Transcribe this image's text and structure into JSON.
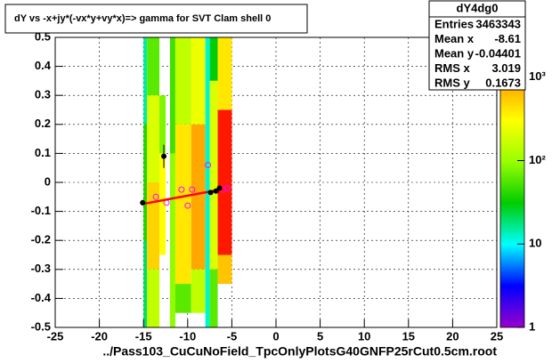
{
  "chart_data": {
    "type": "heatmap",
    "title": "dY vs -x+jy*(-vx*y+vy*x)=> gamma for SVT Clam shell 0",
    "xlabel": "../Pass103_CuCuNoField_TpcOnlyPlotsG40GNFP25rCut0.5cm.root",
    "xlim": [
      -25,
      25
    ],
    "xticks": [
      -25,
      -20,
      -15,
      -10,
      -5,
      0,
      5,
      10,
      15,
      20,
      25
    ],
    "ylim": [
      -0.5,
      0.5
    ],
    "yticks": [
      -0.5,
      -0.4,
      -0.3,
      -0.2,
      -0.1,
      0,
      0.1,
      0.2,
      0.3,
      0.4,
      0.5
    ],
    "zlim": [
      1,
      3000
    ],
    "zlog": true,
    "zticks": [
      1,
      10,
      {
        "value": 100,
        "label": "10²"
      },
      {
        "value": 1000,
        "label": "10³"
      }
    ],
    "grid": true,
    "palette": [
      "#9900cc",
      "#0000ff",
      "#00ffff",
      "#00cc00",
      "#99ff00",
      "#ffff00",
      "#ff9900",
      "#ff0000"
    ],
    "cells": [
      [
        -15,
        -14.6,
        0.2,
        0.5,
        15
      ],
      [
        -15,
        -14.6,
        -0.2,
        0.2,
        40
      ],
      [
        -15,
        -14.6,
        -0.5,
        -0.2,
        20
      ],
      [
        -14.6,
        -13.2,
        0.3,
        0.5,
        60
      ],
      [
        -14.6,
        -13.2,
        0,
        0.3,
        200
      ],
      [
        -14.6,
        -13.2,
        -0.3,
        0,
        500
      ],
      [
        -14.6,
        -13.2,
        -0.5,
        -0.3,
        150
      ],
      [
        -13.2,
        -12.5,
        0.1,
        0.3,
        80
      ],
      [
        -13.2,
        -12.5,
        -0.25,
        0.1,
        300
      ],
      [
        -12,
        -11.4,
        0.1,
        0.5,
        50
      ],
      [
        -12,
        -11.4,
        -0.5,
        0.1,
        90
      ],
      [
        -11.4,
        -9.6,
        0.2,
        0.5,
        150
      ],
      [
        -11.4,
        -9.6,
        -0.35,
        0.2,
        400
      ],
      [
        -11.4,
        -9.6,
        -0.45,
        -0.35,
        60
      ],
      [
        -9.6,
        -8,
        0.2,
        0.5,
        250
      ],
      [
        -9.6,
        -8,
        -0.3,
        0.2,
        800
      ],
      [
        -9.6,
        -8,
        -0.45,
        -0.3,
        150
      ],
      [
        -8,
        -7.5,
        -0.5,
        0.5,
        12
      ],
      [
        -7.5,
        -6.6,
        0.35,
        0.5,
        30
      ],
      [
        -7.5,
        -6.6,
        -0.3,
        0.35,
        200
      ],
      [
        -7.5,
        -6.6,
        -0.5,
        -0.3,
        60
      ],
      [
        -6.6,
        -5,
        0.25,
        0.5,
        400
      ],
      [
        -6.6,
        -5,
        -0.25,
        0.25,
        2500
      ],
      [
        -6.6,
        -5,
        -0.35,
        -0.25,
        600
      ]
    ],
    "profile": {
      "x": [
        -15.1,
        -12.7,
        -7.4,
        -6.8,
        -6.4
      ],
      "y": [
        -0.07,
        0.09,
        -0.035,
        -0.03,
        -0.02
      ],
      "yerr": [
        0.01,
        0.04,
        0.008,
        0.008,
        0.008
      ]
    },
    "circles": {
      "x": [
        -13.6,
        -12.4,
        -10.7,
        -10,
        -9.5,
        -7.7,
        -6,
        -5.5
      ],
      "y": [
        -0.05,
        -0.07,
        -0.025,
        -0.08,
        -0.025,
        0.06,
        -0.025,
        -0.02
      ]
    },
    "fit": {
      "x": [
        -15.2,
        -6.3
      ],
      "y": [
        -0.075,
        -0.025
      ]
    },
    "stats": {
      "title": "dY4dg0",
      "rows": [
        [
          "Entries",
          "3463343"
        ],
        [
          "Mean x",
          "-8.61"
        ],
        [
          "Mean y",
          "-0.04401"
        ],
        [
          "RMS x",
          "3.019"
        ],
        [
          "RMS y",
          "0.1673"
        ]
      ]
    }
  }
}
